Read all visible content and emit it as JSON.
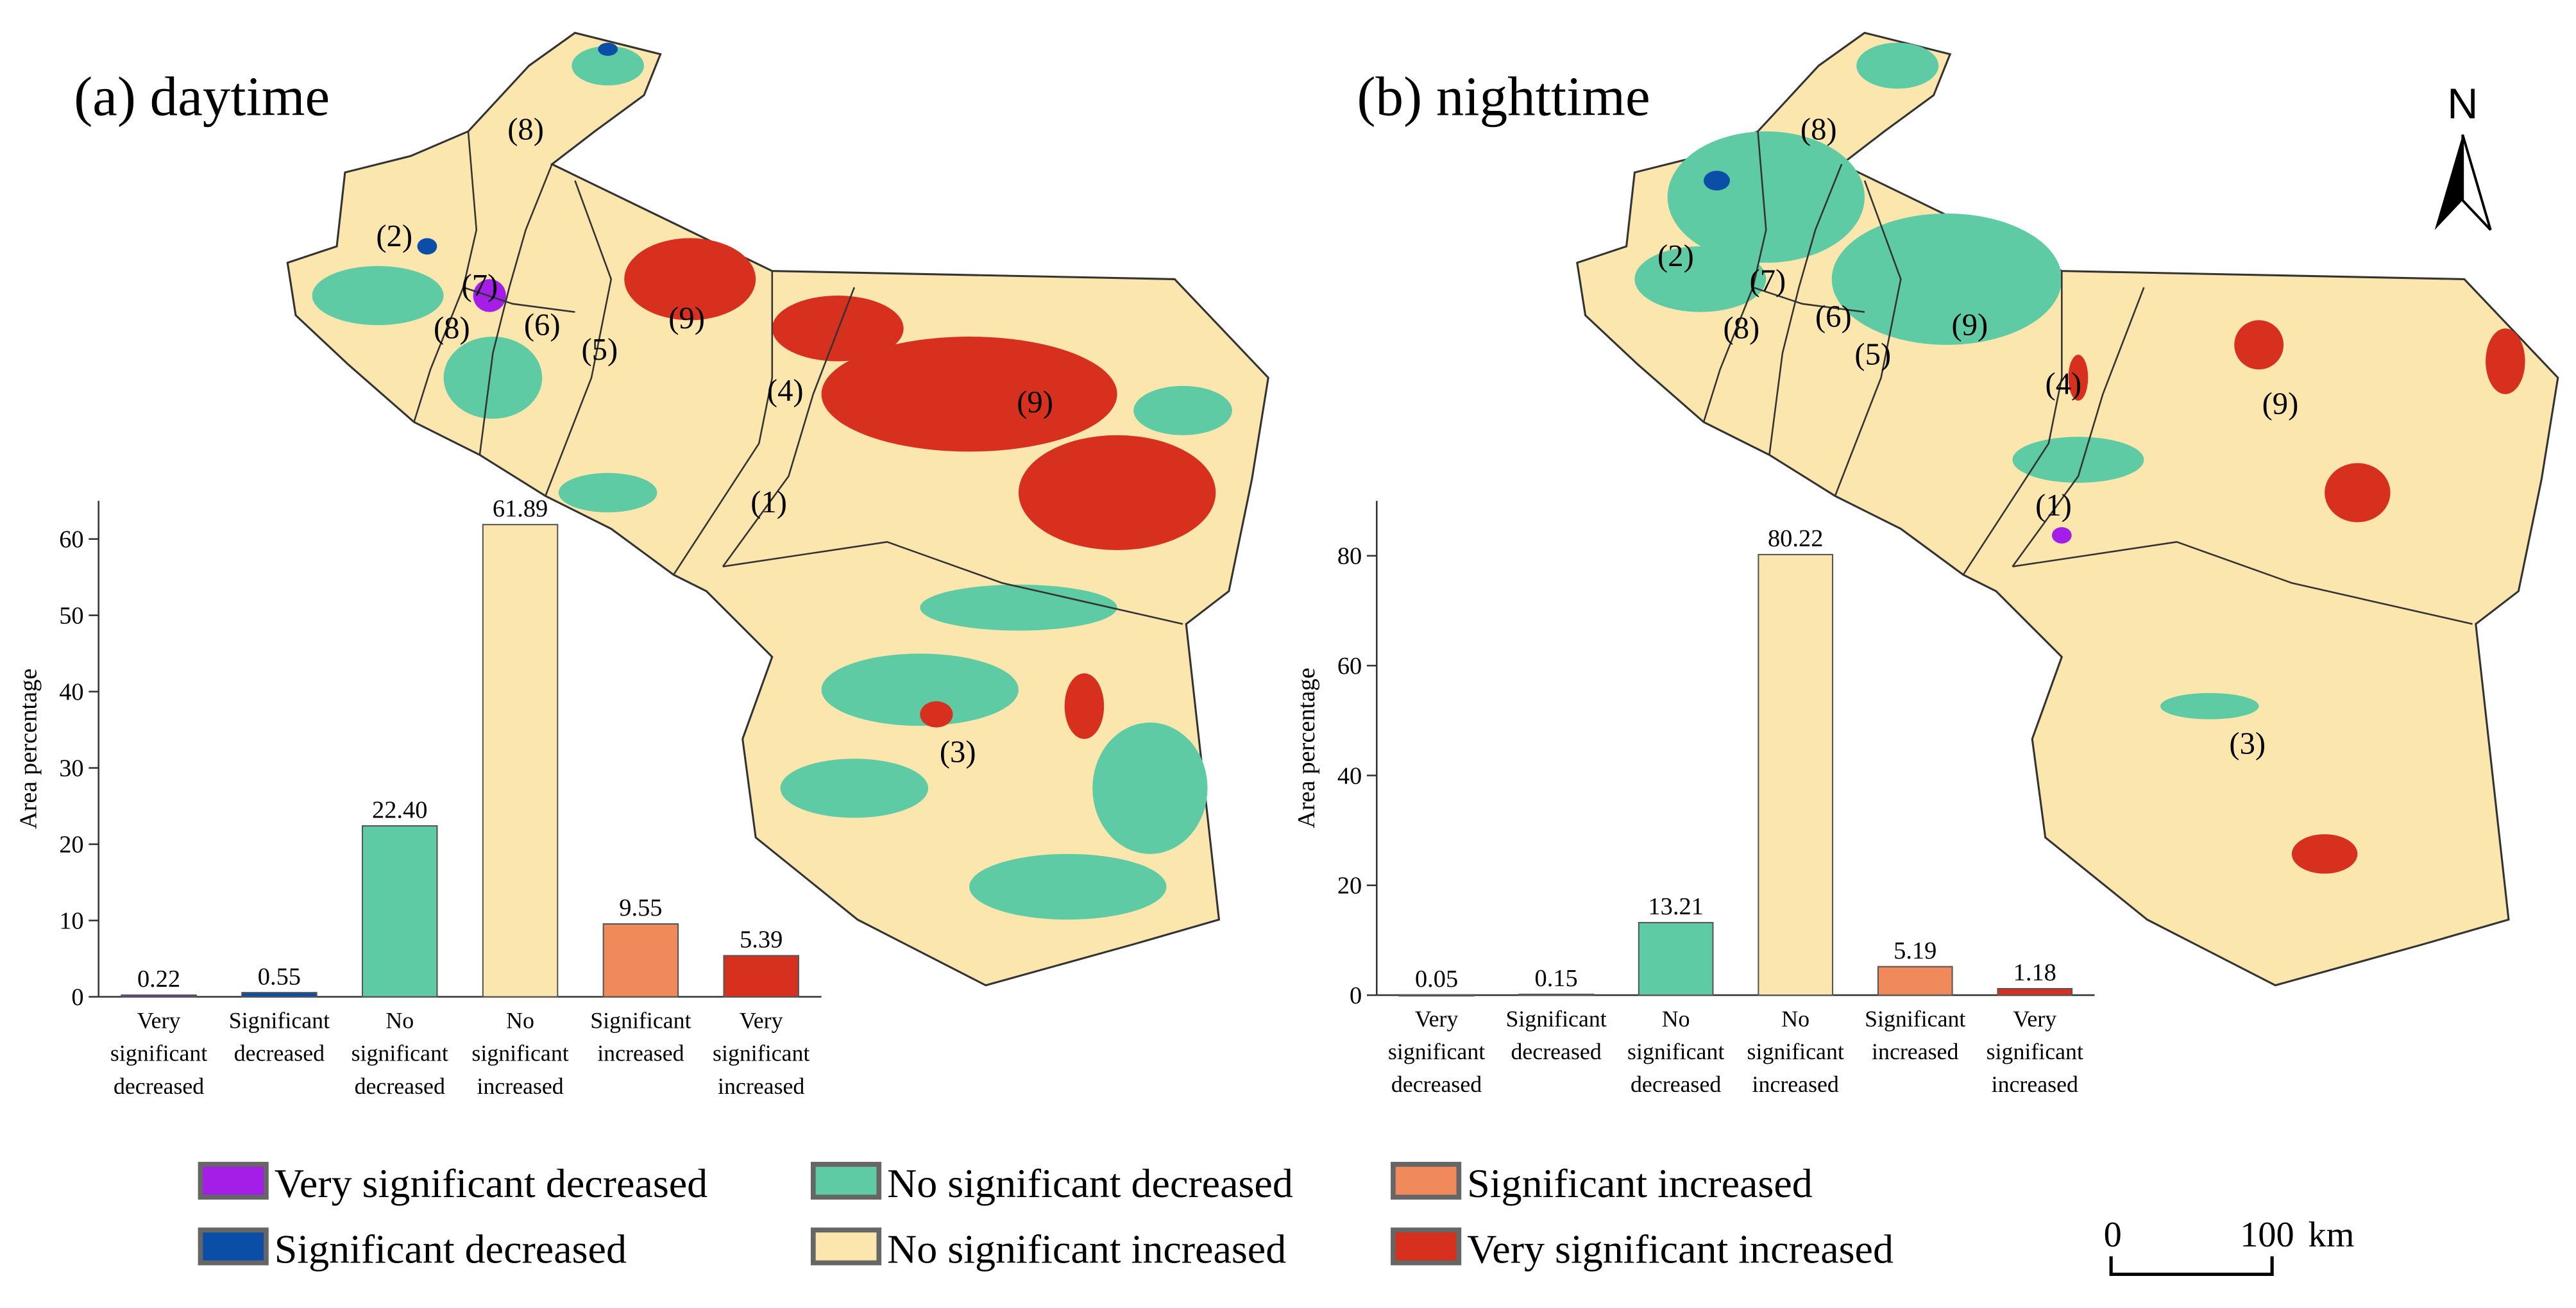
{
  "chart_data": [
    {
      "type": "bar",
      "title": "(a) daytime",
      "y_label": "Area percentage",
      "categories": [
        "Very significant decreased",
        "Significant decreased",
        "No significant decreased",
        "No significant increased",
        "Significant increased",
        "Very significant increased"
      ],
      "values": [
        0.22,
        0.55,
        22.4,
        61.89,
        9.55,
        5.39
      ],
      "value_labels": [
        "0.22",
        "0.55",
        "22.40",
        "61.89",
        "9.55",
        "5.39"
      ],
      "colors": [
        "#a51ee8",
        "#0b4ea8",
        "#5ecba5",
        "#fbe6ae",
        "#f08a5b",
        "#d7301f"
      ],
      "ylim": [
        0,
        65
      ],
      "yticks": [
        0,
        10,
        20,
        30,
        40,
        50,
        60
      ]
    },
    {
      "type": "bar",
      "title": "(b) nighttime",
      "y_label": "Area percentage",
      "categories": [
        "Very significant decreased",
        "Significant decreased",
        "No significant decreased",
        "No significant increased",
        "Significant increased",
        "Very significant increased"
      ],
      "values": [
        0.05,
        0.15,
        13.21,
        80.22,
        5.19,
        1.18
      ],
      "value_labels": [
        "0.05",
        "0.15",
        "13.21",
        "80.22",
        "5.19",
        "1.18"
      ],
      "colors": [
        "#a51ee8",
        "#0b4ea8",
        "#5ecba5",
        "#fbe6ae",
        "#f08a5b",
        "#d7301f"
      ],
      "ylim": [
        0,
        90
      ],
      "yticks": [
        0,
        20,
        40,
        60,
        80
      ]
    }
  ],
  "map_labels": [
    [
      "(8)",
      "(2)",
      "(7)",
      "(8)",
      "(6)",
      "(5)",
      "(9)",
      "(4)",
      "(9)",
      "(1)",
      "(3)"
    ],
    [
      "(8)",
      "(2)",
      "(7)",
      "(8)",
      "(6)",
      "(5)",
      "(9)",
      "(4)",
      "(9)",
      "(1)",
      "(3)"
    ]
  ],
  "north": "N",
  "scale_bar": {
    "start": "0",
    "end": "100",
    "unit": "km"
  }
}
